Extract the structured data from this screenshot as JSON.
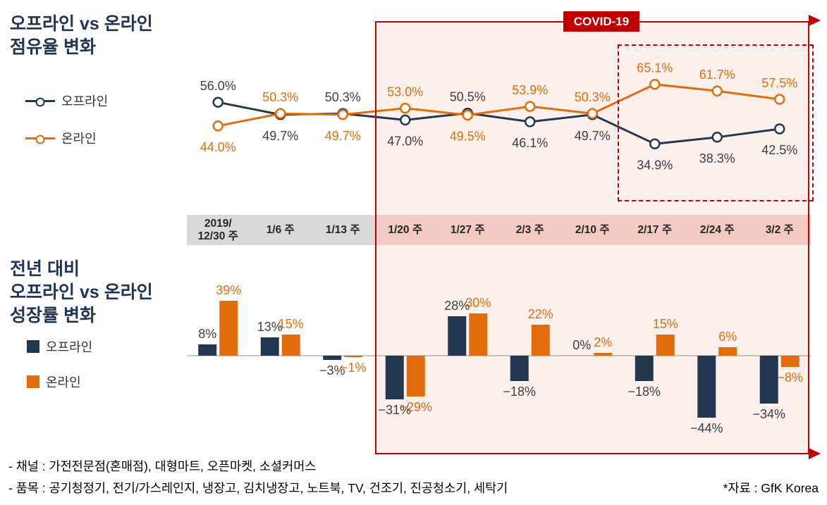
{
  "covid": {
    "label": "COVID-19"
  },
  "share": {
    "title": "오프라인 vs 온라인\n점유율 변화"
  },
  "growth": {
    "title": "전년 대비\n오프라인 vs 온라인\n성장률 변화"
  },
  "legend": {
    "offline": "오프라인",
    "online": "온라인"
  },
  "footer": {
    "channels": "- 채널 : 가전전문점(혼매점), 대형마트, 오픈마켓, 소셜커머스",
    "items": "- 품목 : 공기청정기, 전기/가스레인지, 냉장고, 김치냉장고, 노트북, TV, 건조기, 진공청소기, 세탁기",
    "source": "*자료 : GfK Korea"
  },
  "colors": {
    "offline": "#243750",
    "online": "#e36c0a",
    "covid_red": "#c00000",
    "offline_label": "#3f3f3f",
    "week_gray_bg": "#d9d9d9",
    "week_pink_bg": "#f3cac3",
    "covid_fill": "#fcf0ed"
  },
  "chart_data": [
    {
      "type": "line",
      "title": "오프라인 vs 온라인 점유율 변화",
      "unit": "%",
      "categories": [
        "2019/12/30 주",
        "1/6 주",
        "1/13 주",
        "1/20 주",
        "1/27 주",
        "2/3 주",
        "2/10 주",
        "2/17 주",
        "2/24 주",
        "3/2 주"
      ],
      "series": [
        {
          "name": "오프라인",
          "color": "#243750",
          "label_color": "#3f3f3f",
          "values": [
            56.0,
            49.7,
            50.3,
            47.0,
            50.5,
            46.1,
            49.7,
            34.9,
            38.3,
            42.5
          ]
        },
        {
          "name": "온라인",
          "color": "#e36c0a",
          "label_color": "#e36c0a",
          "values": [
            44.0,
            50.3,
            49.7,
            53.0,
            49.5,
            53.9,
            50.3,
            65.1,
            61.7,
            57.5
          ]
        }
      ],
      "ylim": [
        30,
        70
      ],
      "grid": false,
      "legend_position": "left",
      "annotations": [
        "COVID-19 구간 강조(1/20 주 이후)",
        "마지막 3주(2/17~3/2) 점선 박스 강조"
      ]
    },
    {
      "type": "bar",
      "title": "전년 대비 오프라인 vs 온라인 성장률 변화",
      "unit": "%",
      "categories": [
        "2019/12/30 주",
        "1/6 주",
        "1/13 주",
        "1/20 주",
        "1/27 주",
        "2/3 주",
        "2/10 주",
        "2/17 주",
        "2/24 주",
        "3/2 주"
      ],
      "series": [
        {
          "name": "오프라인",
          "color": "#243750",
          "label_color": "#3f3f3f",
          "values": [
            8,
            13,
            -3,
            -31,
            28,
            -18,
            0,
            -18,
            -44,
            -34
          ]
        },
        {
          "name": "온라인",
          "color": "#e36c0a",
          "label_color": "#e36c0a",
          "values": [
            39,
            15,
            -1,
            -29,
            30,
            22,
            2,
            15,
            6,
            -8
          ]
        }
      ],
      "ylim": [
        -50,
        45
      ],
      "grid": false,
      "legend_position": "left"
    }
  ]
}
